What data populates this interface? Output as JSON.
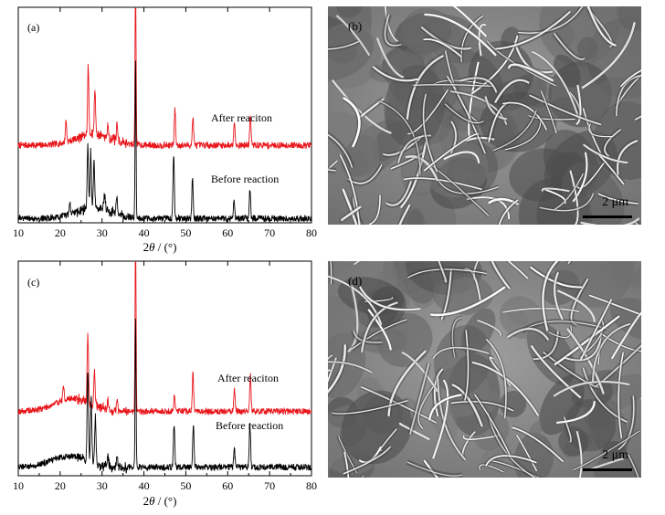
{
  "chart_data": [
    {
      "type": "line",
      "panel_label": "(a)",
      "xlabel": "2θ / (°)",
      "xlabel_parts": [
        "2",
        "θ",
        " / (°)"
      ],
      "xlim": [
        10,
        80
      ],
      "xticks": [
        10,
        20,
        30,
        40,
        50,
        60,
        70,
        80
      ],
      "series": [
        {
          "name": "After reaciton",
          "color": "#e8161b",
          "baseline": 0.36,
          "noise": 0.015,
          "hump": {
            "center": 28,
            "width": 6,
            "height": 0.05
          },
          "peaks": [
            {
              "x": 21.4,
              "h": 0.1
            },
            {
              "x": 26.7,
              "h": 0.32
            },
            {
              "x": 28.3,
              "h": 0.22
            },
            {
              "x": 31.4,
              "h": 0.06
            },
            {
              "x": 33.6,
              "h": 0.07
            },
            {
              "x": 38.0,
              "h": 0.9
            },
            {
              "x": 47.4,
              "h": 0.17
            },
            {
              "x": 51.7,
              "h": 0.13
            },
            {
              "x": 61.6,
              "h": 0.12
            },
            {
              "x": 65.4,
              "h": 0.14
            }
          ]
        },
        {
          "name": "Before reaction",
          "color": "#000000",
          "baseline": 0.02,
          "noise": 0.015,
          "hump": {
            "center": 28,
            "width": 6,
            "height": 0.05
          },
          "peaks": [
            {
              "x": 22.3,
              "h": 0.06
            },
            {
              "x": 26.6,
              "h": 0.3
            },
            {
              "x": 27.3,
              "h": 0.26
            },
            {
              "x": 28.1,
              "h": 0.22
            },
            {
              "x": 30.6,
              "h": 0.08
            },
            {
              "x": 33.5,
              "h": 0.08
            },
            {
              "x": 38.0,
              "h": 0.72
            },
            {
              "x": 47.1,
              "h": 0.3
            },
            {
              "x": 51.6,
              "h": 0.19
            },
            {
              "x": 61.5,
              "h": 0.09
            },
            {
              "x": 65.3,
              "h": 0.14
            }
          ]
        }
      ]
    },
    {
      "type": "line",
      "panel_label": "(c)",
      "xlabel": "2θ / (°)",
      "xlabel_parts": [
        "2",
        "θ",
        " / (°)"
      ],
      "xlim": [
        10,
        80
      ],
      "xticks": [
        10,
        20,
        30,
        40,
        50,
        60,
        70,
        80
      ],
      "series": [
        {
          "name": "After reaciton",
          "color": "#e8161b",
          "baseline": 0.3,
          "noise": 0.015,
          "hump": {
            "center": 23,
            "width": 6,
            "height": 0.06
          },
          "peaks": [
            {
              "x": 20.8,
              "h": 0.06
            },
            {
              "x": 26.6,
              "h": 0.32
            },
            {
              "x": 28.2,
              "h": 0.16
            },
            {
              "x": 31.4,
              "h": 0.05
            },
            {
              "x": 33.6,
              "h": 0.05
            },
            {
              "x": 38.0,
              "h": 0.94
            },
            {
              "x": 47.3,
              "h": 0.08
            },
            {
              "x": 51.7,
              "h": 0.18
            },
            {
              "x": 61.6,
              "h": 0.1
            },
            {
              "x": 65.4,
              "h": 0.17
            }
          ]
        },
        {
          "name": "Before reaction",
          "color": "#000000",
          "baseline": 0.04,
          "noise": 0.015,
          "hump": {
            "center": 22,
            "width": 6,
            "height": 0.05
          },
          "peaks": [
            {
              "x": 26.6,
              "h": 0.42
            },
            {
              "x": 27.4,
              "h": 0.3
            },
            {
              "x": 28.4,
              "h": 0.22
            },
            {
              "x": 31.4,
              "h": 0.05
            },
            {
              "x": 33.6,
              "h": 0.06
            },
            {
              "x": 38.0,
              "h": 0.7
            },
            {
              "x": 47.2,
              "h": 0.2
            },
            {
              "x": 51.8,
              "h": 0.2
            },
            {
              "x": 61.6,
              "h": 0.08
            },
            {
              "x": 65.3,
              "h": 0.2
            }
          ]
        }
      ]
    }
  ],
  "sem_images": [
    {
      "label": "(b)",
      "scale_text": "2 μm"
    },
    {
      "label": "(d)",
      "scale_text": "2 μm"
    }
  ]
}
